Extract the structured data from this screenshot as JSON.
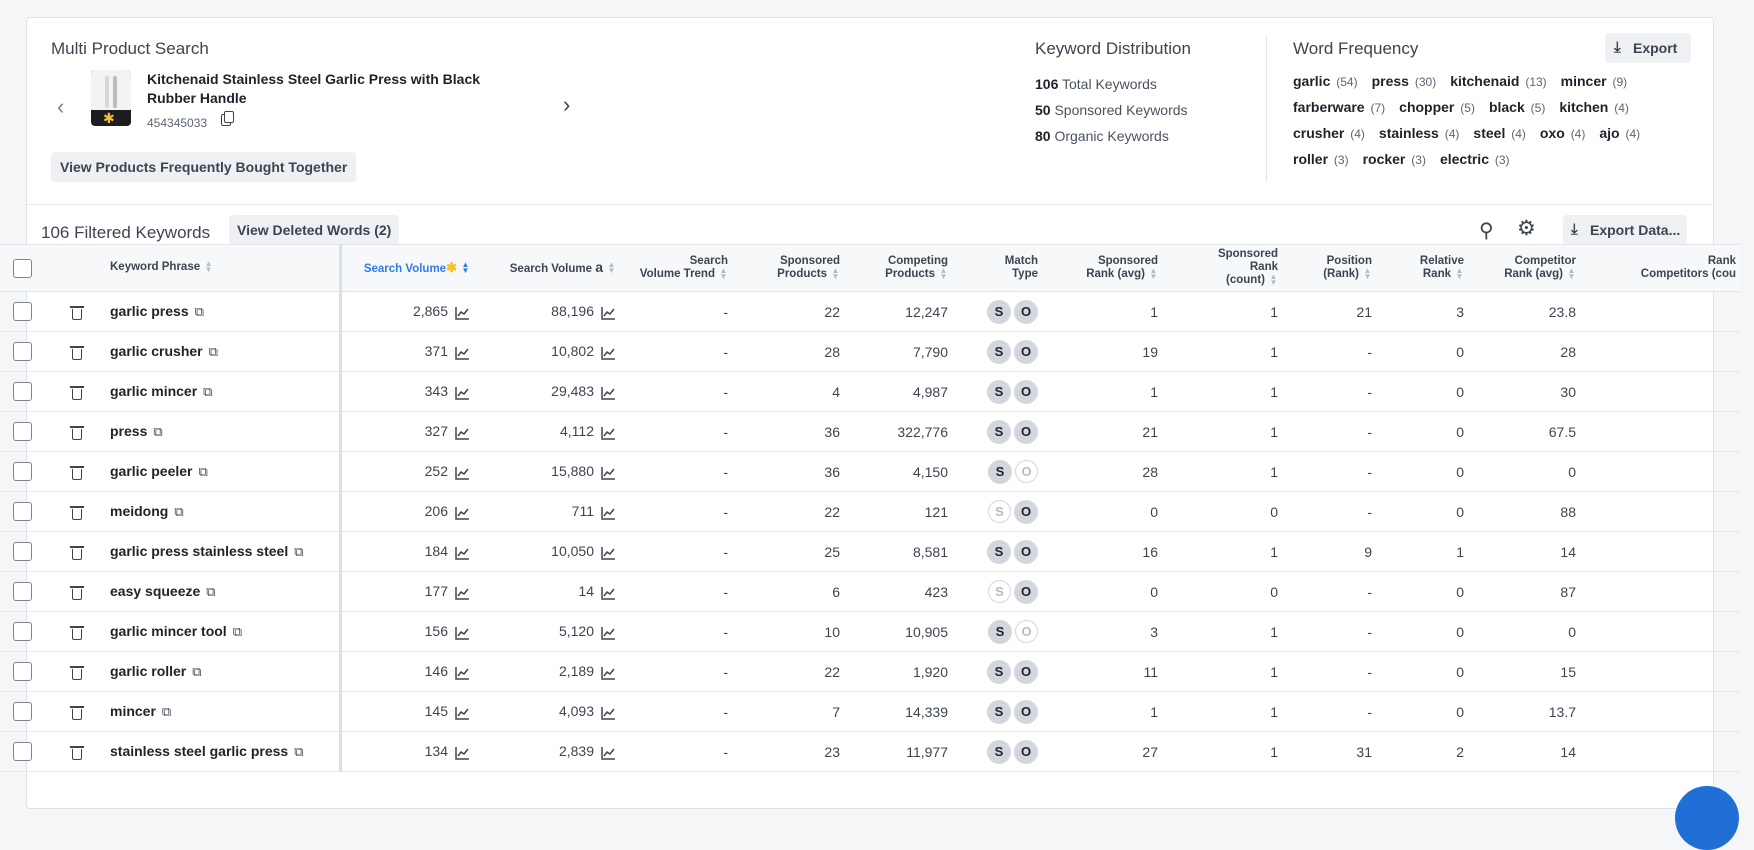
{
  "product_search": {
    "title": "Multi Product Search",
    "product_title": "Kitchenaid Stainless Steel Garlic Press with Black Rubber Handle",
    "product_id": "454345033",
    "frequently_bought_label": "View Products Frequently Bought Together"
  },
  "keyword_distribution": {
    "title": "Keyword Distribution",
    "rows": [
      {
        "count": "106",
        "label": "Total Keywords"
      },
      {
        "count": "50",
        "label": "Sponsored Keywords"
      },
      {
        "count": "80",
        "label": "Organic Keywords"
      }
    ]
  },
  "word_frequency": {
    "title": "Word Frequency",
    "export_label": "Export",
    "lines": [
      [
        {
          "w": "garlic",
          "c": "(54)"
        },
        {
          "w": "press",
          "c": "(30)"
        },
        {
          "w": "kitchenaid",
          "c": "(13)"
        },
        {
          "w": "mincer",
          "c": "(9)"
        }
      ],
      [
        {
          "w": "farberware",
          "c": "(7)"
        },
        {
          "w": "chopper",
          "c": "(5)"
        },
        {
          "w": "black",
          "c": "(5)"
        },
        {
          "w": "kitchen",
          "c": "(4)"
        }
      ],
      [
        {
          "w": "crusher",
          "c": "(4)"
        },
        {
          "w": "stainless",
          "c": "(4)"
        },
        {
          "w": "steel",
          "c": "(4)"
        },
        {
          "w": "oxo",
          "c": "(4)"
        },
        {
          "w": "ajo",
          "c": "(4)"
        }
      ],
      [
        {
          "w": "roller",
          "c": "(3)"
        },
        {
          "w": "rocker",
          "c": "(3)"
        },
        {
          "w": "electric",
          "c": "(3)"
        }
      ]
    ]
  },
  "filter_bar": {
    "count_label": "106 Filtered Keywords",
    "deleted_label": "View Deleted Words (2)",
    "export_data_label": "Export Data..."
  },
  "table": {
    "headers": {
      "keyword": "Keyword Phrase",
      "sv_walmart": "Search Volume",
      "sv_amazon": "Search Volume",
      "sv_trend_1": "Search",
      "sv_trend_2": "Volume Trend",
      "sponsored_1": "Sponsored",
      "sponsored_2": "Products",
      "competing_1": "Competing",
      "competing_2": "Products",
      "match_1": "Match",
      "match_2": "Type",
      "spr_avg_1": "Sponsored",
      "spr_avg_2": "Rank (avg)",
      "spr_cnt_1": "Sponsored",
      "spr_cnt_2": "Rank",
      "spr_cnt_3": "(count)",
      "pos_1": "Position",
      "pos_2": "(Rank)",
      "rel_1": "Relative",
      "rel_2": "Rank",
      "comp_avg_1": "Competitor",
      "comp_avg_2": "Rank (avg)",
      "rank_comp_1": "Rank",
      "rank_comp_2": "Competitors (cou"
    },
    "match_s": "S",
    "match_o": "O",
    "rows": [
      {
        "kw": "garlic press",
        "sv": "2,865",
        "sva": "88,196",
        "trend": "-",
        "sp": "22",
        "cp": "12,247",
        "s": true,
        "o": true,
        "sravg": "1",
        "srcnt": "1",
        "pos": "21",
        "rel": "3",
        "cavg": "23.8"
      },
      {
        "kw": "garlic crusher",
        "sv": "371",
        "sva": "10,802",
        "trend": "-",
        "sp": "28",
        "cp": "7,790",
        "s": true,
        "o": true,
        "sravg": "19",
        "srcnt": "1",
        "pos": "-",
        "rel": "0",
        "cavg": "28"
      },
      {
        "kw": "garlic mincer",
        "sv": "343",
        "sva": "29,483",
        "trend": "-",
        "sp": "4",
        "cp": "4,987",
        "s": true,
        "o": true,
        "sravg": "1",
        "srcnt": "1",
        "pos": "-",
        "rel": "0",
        "cavg": "30"
      },
      {
        "kw": "press",
        "sv": "327",
        "sva": "4,112",
        "trend": "-",
        "sp": "36",
        "cp": "322,776",
        "s": true,
        "o": true,
        "sravg": "21",
        "srcnt": "1",
        "pos": "-",
        "rel": "0",
        "cavg": "67.5"
      },
      {
        "kw": "garlic peeler",
        "sv": "252",
        "sva": "15,880",
        "trend": "-",
        "sp": "36",
        "cp": "4,150",
        "s": true,
        "o": false,
        "sravg": "28",
        "srcnt": "1",
        "pos": "-",
        "rel": "0",
        "cavg": "0"
      },
      {
        "kw": "meidong",
        "sv": "206",
        "sva": "711",
        "trend": "-",
        "sp": "22",
        "cp": "121",
        "s": false,
        "o": true,
        "sravg": "0",
        "srcnt": "0",
        "pos": "-",
        "rel": "0",
        "cavg": "88"
      },
      {
        "kw": "garlic press stainless steel",
        "sv": "184",
        "sva": "10,050",
        "trend": "-",
        "sp": "25",
        "cp": "8,581",
        "s": true,
        "o": true,
        "sravg": "16",
        "srcnt": "1",
        "pos": "9",
        "rel": "1",
        "cavg": "14"
      },
      {
        "kw": "easy squeeze",
        "sv": "177",
        "sva": "14",
        "trend": "-",
        "sp": "6",
        "cp": "423",
        "s": false,
        "o": true,
        "sravg": "0",
        "srcnt": "0",
        "pos": "-",
        "rel": "0",
        "cavg": "87"
      },
      {
        "kw": "garlic mincer tool",
        "sv": "156",
        "sva": "5,120",
        "trend": "-",
        "sp": "10",
        "cp": "10,905",
        "s": true,
        "o": false,
        "sravg": "3",
        "srcnt": "1",
        "pos": "-",
        "rel": "0",
        "cavg": "0"
      },
      {
        "kw": "garlic roller",
        "sv": "146",
        "sva": "2,189",
        "trend": "-",
        "sp": "22",
        "cp": "1,920",
        "s": true,
        "o": true,
        "sravg": "11",
        "srcnt": "1",
        "pos": "-",
        "rel": "0",
        "cavg": "15"
      },
      {
        "kw": "mincer",
        "sv": "145",
        "sva": "4,093",
        "trend": "-",
        "sp": "7",
        "cp": "14,339",
        "s": true,
        "o": true,
        "sravg": "1",
        "srcnt": "1",
        "pos": "-",
        "rel": "0",
        "cavg": "13.7"
      },
      {
        "kw": "stainless steel garlic press",
        "sv": "134",
        "sva": "2,839",
        "trend": "-",
        "sp": "23",
        "cp": "11,977",
        "s": true,
        "o": true,
        "sravg": "27",
        "srcnt": "1",
        "pos": "31",
        "rel": "2",
        "cavg": "14"
      }
    ]
  }
}
